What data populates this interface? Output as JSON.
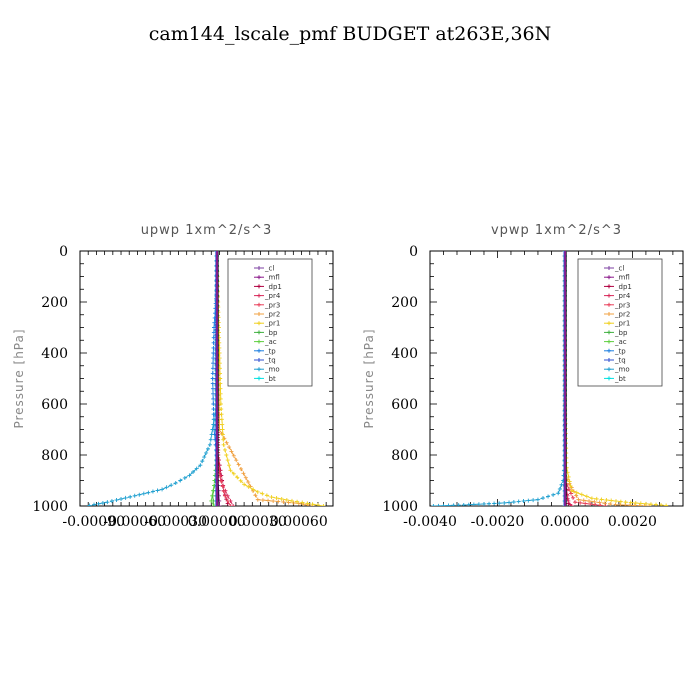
{
  "title": "cam144_lscale_pmf  BUDGET at263E,36N",
  "legend_entries": [
    {
      "label": "_cl",
      "color": "#7b3fa0"
    },
    {
      "label": "_mfl",
      "color": "#8b1a8b"
    },
    {
      "label": "_dp1",
      "color": "#b00040"
    },
    {
      "label": "_pr4",
      "color": "#d8285a"
    },
    {
      "label": "_pr3",
      "color": "#e8405a"
    },
    {
      "label": "_pr2",
      "color": "#f0a040"
    },
    {
      "label": "_pr1",
      "color": "#f0d020"
    },
    {
      "label": "_bp",
      "color": "#40b040"
    },
    {
      "label": "_ac",
      "color": "#60d040"
    },
    {
      "label": "_tp",
      "color": "#2080e0"
    },
    {
      "label": "_tq",
      "color": "#3050d0"
    },
    {
      "label": "_mo",
      "color": "#20a0d0"
    },
    {
      "label": "_bt",
      "color": "#00e0e0"
    }
  ],
  "chart_data": [
    {
      "type": "line",
      "title": "upwp   1xm^2/s^3",
      "ylabel": "Pressure  [hPa]",
      "xlim": [
        -0.001,
        0.00085
      ],
      "ylim": [
        1000,
        0
      ],
      "x_ticks": [
        -0.0009,
        -0.0006,
        -0.0003,
        0.0,
        0.0003,
        0.0006
      ],
      "x_tick_labels": [
        "-0.00090",
        "-0.00060",
        "-0.00030",
        "0.00000",
        "0.00030",
        "0.00060"
      ],
      "y_ticks": [
        0,
        200,
        400,
        600,
        800,
        1000
      ],
      "y_tick_labels": [
        "0",
        "200",
        "400",
        "600",
        "800",
        "1000"
      ],
      "legend_position": "top-right",
      "series": [
        {
          "name": "_cl",
          "color": "#7b3fa0",
          "points": [
            [
              0,
              0
            ],
            [
              0,
              200
            ],
            [
              0,
              600
            ],
            [
              0,
              1000
            ]
          ]
        },
        {
          "name": "_mfl",
          "color": "#8b1a8b",
          "points": [
            [
              0,
              0
            ],
            [
              0,
              500
            ],
            [
              1e-05,
              900
            ],
            [
              2e-05,
              1000
            ]
          ]
        },
        {
          "name": "_dp1",
          "color": "#b00040",
          "points": [
            [
              0,
              0
            ],
            [
              1e-05,
              800
            ],
            [
              5e-05,
              940
            ],
            [
              8e-05,
              990
            ]
          ]
        },
        {
          "name": "_pr4",
          "color": "#d8285a",
          "points": [
            [
              0,
              0
            ],
            [
              1e-05,
              800
            ],
            [
              3e-05,
              900
            ],
            [
              8e-05,
              960
            ],
            [
              0.00012,
              1000
            ]
          ]
        },
        {
          "name": "_pr3",
          "color": "#e8405a",
          "points": [
            [
              0,
              0
            ],
            [
              1e-05,
              850
            ],
            [
              6e-05,
              960
            ],
            [
              0.0001,
              1000
            ]
          ]
        },
        {
          "name": "_pr2",
          "color": "#f0a040",
          "points": [
            [
              0,
              0
            ],
            [
              2e-05,
              700
            ],
            [
              0.0003,
              975
            ],
            [
              0.0006,
              990
            ],
            [
              0.0007,
              1000
            ]
          ]
        },
        {
          "name": "_pr1",
          "color": "#f0d020",
          "points": [
            [
              0,
              0
            ],
            [
              1e-05,
              200
            ],
            [
              2e-05,
              400
            ],
            [
              3e-05,
              600
            ],
            [
              5e-05,
              760
            ],
            [
              0.0001,
              860
            ],
            [
              0.0002,
              915
            ],
            [
              0.0003,
              945
            ],
            [
              0.0004,
              965
            ],
            [
              0.00055,
              980
            ],
            [
              0.0007,
              993
            ],
            [
              0.00078,
              1000
            ]
          ]
        },
        {
          "name": "_bp",
          "color": "#40b040",
          "points": [
            [
              0,
              0
            ],
            [
              0,
              800
            ],
            [
              -1e-05,
              900
            ],
            [
              -3e-05,
              960
            ],
            [
              -2e-05,
              1000
            ]
          ]
        },
        {
          "name": "_ac",
          "color": "#60d040",
          "points": [
            [
              0,
              0
            ],
            [
              0,
              800
            ],
            [
              -2e-05,
              920
            ],
            [
              -4e-05,
              980
            ],
            [
              -2e-05,
              1000
            ]
          ]
        },
        {
          "name": "_tp",
          "color": "#2080e0",
          "points": [
            [
              0,
              0
            ],
            [
              0,
              150
            ],
            [
              -2e-05,
              300
            ],
            [
              -3e-05,
              500
            ],
            [
              -2e-05,
              700
            ],
            [
              0,
              800
            ]
          ]
        },
        {
          "name": "_tq",
          "color": "#3050d0",
          "points": [
            [
              0,
              0
            ],
            [
              0,
              600
            ],
            [
              0,
              1000
            ]
          ]
        },
        {
          "name": "_mo",
          "color": "#20a0d0",
          "points": [
            [
              0,
              0
            ],
            [
              0,
              600
            ],
            [
              -5e-05,
              760
            ],
            [
              -0.00012,
              840
            ],
            [
              -0.0002,
              880
            ],
            [
              -0.0003,
              910
            ],
            [
              -0.0004,
              935
            ],
            [
              -0.0006,
              960
            ],
            [
              -0.0008,
              985
            ],
            [
              -0.00093,
              998
            ]
          ]
        },
        {
          "name": "_bt",
          "color": "#00e0e0",
          "points": [
            [
              0,
              0
            ],
            [
              0,
              1000
            ]
          ]
        }
      ]
    },
    {
      "type": "line",
      "title": "vpwp   1xm^2/s^3",
      "ylabel": "Pressure  [hPa]",
      "xlim": [
        -0.004,
        0.0035
      ],
      "ylim": [
        1000,
        0
      ],
      "x_ticks": [
        -0.004,
        -0.002,
        0.0,
        0.002
      ],
      "x_tick_labels": [
        "-0.0040",
        "-0.0020",
        "0.0000",
        "0.0020"
      ],
      "y_ticks": [
        0,
        200,
        400,
        600,
        800,
        1000
      ],
      "y_tick_labels": [
        "0",
        "200",
        "400",
        "600",
        "800",
        "1000"
      ],
      "legend_position": "top-right",
      "series": [
        {
          "name": "_cl",
          "color": "#7b3fa0",
          "points": [
            [
              0,
              0
            ],
            [
              0,
              1000
            ]
          ]
        },
        {
          "name": "_mfl",
          "color": "#8b1a8b",
          "points": [
            [
              0,
              0
            ],
            [
              0,
              600
            ],
            [
              0,
              1000
            ]
          ]
        },
        {
          "name": "_dp1",
          "color": "#b00040",
          "points": [
            [
              0,
              0
            ],
            [
              0,
              900
            ],
            [
              0.0001,
              990
            ],
            [
              0.0002,
              1000
            ]
          ]
        },
        {
          "name": "_pr4",
          "color": "#d8285a",
          "points": [
            [
              0,
              0
            ],
            [
              0,
              900
            ],
            [
              0.0001,
              980
            ],
            [
              0.0002,
              1000
            ]
          ]
        },
        {
          "name": "_pr3",
          "color": "#e8405a",
          "points": [
            [
              0,
              0
            ],
            [
              0,
              900
            ],
            [
              0.0003,
              985
            ],
            [
              0.0012,
              1000
            ]
          ]
        },
        {
          "name": "_pr2",
          "color": "#f0a040",
          "points": [
            [
              0,
              0
            ],
            [
              0,
              880
            ],
            [
              0.0004,
              975
            ],
            [
              0.0015,
              995
            ],
            [
              0.0025,
              1000
            ]
          ]
        },
        {
          "name": "_pr1",
          "color": "#f0d020",
          "points": [
            [
              0,
              0
            ],
            [
              0,
              600
            ],
            [
              5e-05,
              850
            ],
            [
              0.0002,
              940
            ],
            [
              0.0008,
              970
            ],
            [
              0.0018,
              985
            ],
            [
              0.003,
              998
            ]
          ]
        },
        {
          "name": "_bp",
          "color": "#40b040",
          "points": [
            [
              0,
              0
            ],
            [
              0,
              1000
            ]
          ]
        },
        {
          "name": "_ac",
          "color": "#60d040",
          "points": [
            [
              0,
              0
            ],
            [
              0,
              1000
            ]
          ]
        },
        {
          "name": "_tp",
          "color": "#2080e0",
          "points": [
            [
              0,
              0
            ],
            [
              0,
              1000
            ]
          ]
        },
        {
          "name": "_tq",
          "color": "#3050d0",
          "points": [
            [
              0,
              0
            ],
            [
              0,
              1000
            ]
          ]
        },
        {
          "name": "_mo",
          "color": "#20a0d0",
          "points": [
            [
              0,
              0
            ],
            [
              0,
              800
            ],
            [
              -5e-05,
              900
            ],
            [
              -0.0002,
              950
            ],
            [
              -0.0008,
              975
            ],
            [
              -0.0018,
              988
            ],
            [
              -0.003,
              996
            ],
            [
              -0.0039,
              1000
            ]
          ]
        },
        {
          "name": "_bt",
          "color": "#00e0e0",
          "points": [
            [
              0,
              0
            ],
            [
              0,
              1000
            ]
          ]
        }
      ]
    }
  ]
}
